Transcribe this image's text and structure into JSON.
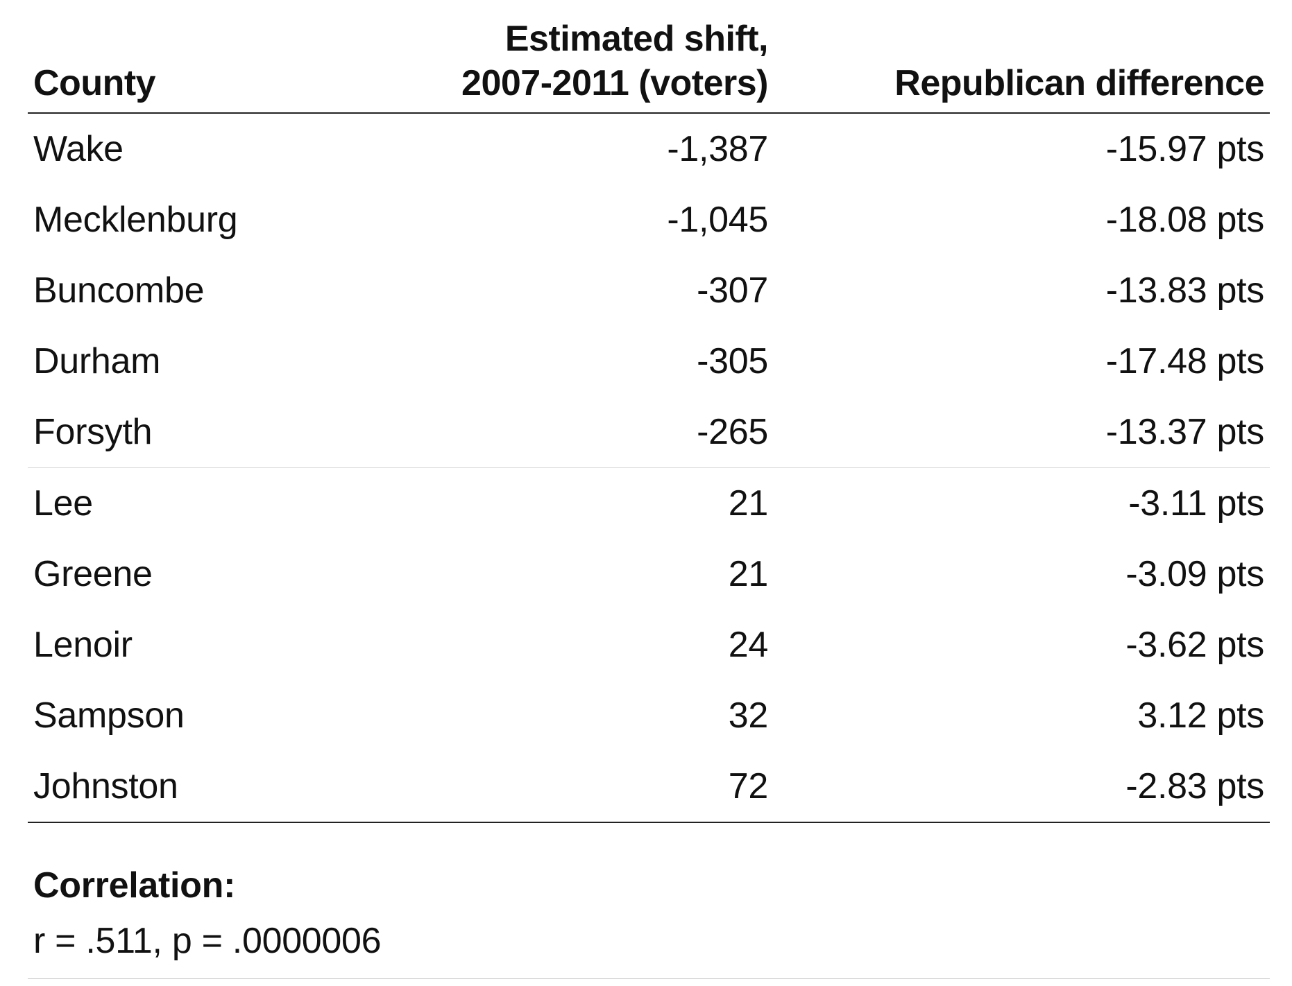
{
  "table": {
    "headers": {
      "county": "County",
      "shift_line1": "Estimated shift,",
      "shift_line2": "2007-2011 (voters)",
      "difference": "Republican difference"
    },
    "rows": [
      {
        "county": "Wake",
        "shift": "-1,387",
        "difference": "-15.97 pts"
      },
      {
        "county": "Mecklenburg",
        "shift": "-1,045",
        "difference": "-18.08 pts"
      },
      {
        "county": "Buncombe",
        "shift": "-307",
        "difference": "-13.83 pts"
      },
      {
        "county": "Durham",
        "shift": "-305",
        "difference": "-17.48 pts"
      },
      {
        "county": "Forsyth",
        "shift": "-265",
        "difference": "-13.37 pts"
      },
      {
        "county": "Lee",
        "shift": "21",
        "difference": "-3.11 pts"
      },
      {
        "county": "Greene",
        "shift": "21",
        "difference": "-3.09 pts"
      },
      {
        "county": "Lenoir",
        "shift": "24",
        "difference": "-3.62 pts"
      },
      {
        "county": "Sampson",
        "shift": "32",
        "difference": "3.12 pts"
      },
      {
        "county": "Johnston",
        "shift": "72",
        "difference": "-2.83 pts"
      }
    ]
  },
  "footer": {
    "title": "Correlation:",
    "text": "r = .511, p = .0000006"
  }
}
